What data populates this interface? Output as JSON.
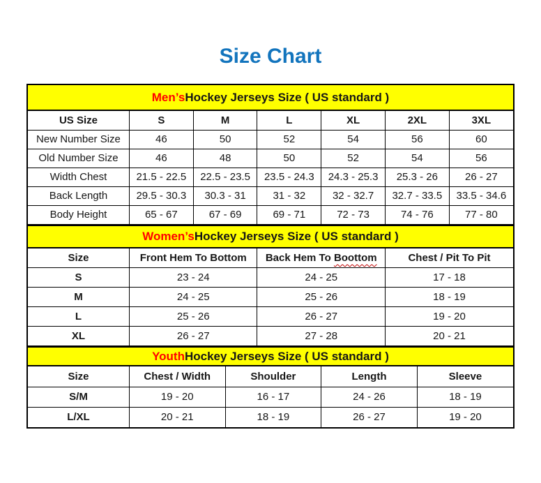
{
  "page": {
    "title": "Size Chart"
  },
  "colors": {
    "title": "#1274BD",
    "section_bg": "#FFFF00",
    "highlight": "#FF0000",
    "squiggle": "#C00000",
    "border": "#000000"
  },
  "sections": [
    {
      "id": "men",
      "heading": {
        "highlight": "Men’s",
        "rest": " Hockey Jerseys Size ( US standard )"
      },
      "columns": [
        "US Size",
        "S",
        "M",
        "L",
        "XL",
        "2XL",
        "3XL"
      ],
      "rows": [
        {
          "label": "New Number Size",
          "values": [
            "46",
            "50",
            "52",
            "54",
            "56",
            "60"
          ]
        },
        {
          "label": "Old Number Size",
          "values": [
            "46",
            "48",
            "50",
            "52",
            "54",
            "56"
          ]
        },
        {
          "label": "Width Chest",
          "values": [
            "21.5 - 22.5",
            "22.5 - 23.5",
            "23.5 - 24.3",
            "24.3 - 25.3",
            "25.3 - 26",
            "26 - 27"
          ]
        },
        {
          "label": "Back Length",
          "values": [
            "29.5 - 30.3",
            "30.3 - 31",
            "31 - 32",
            "32 - 32.7",
            "32.7 - 33.5",
            "33.5 - 34.6"
          ]
        },
        {
          "label": "Body Height",
          "values": [
            "65 - 67",
            "67 - 69",
            "69 - 71",
            "72 - 73",
            "74 - 76",
            "77 - 80"
          ]
        }
      ]
    },
    {
      "id": "women",
      "heading": {
        "highlight": "Women’s",
        "rest": " Hockey Jerseys Size ( US standard )"
      },
      "columns": [
        "Size",
        "Front Hem To Bottom",
        {
          "text": "Back Hem To ",
          "squiggle": "Boottom"
        },
        "Chest / Pit To Pit"
      ],
      "rows": [
        {
          "label": "S",
          "values": [
            "23 - 24",
            "24 - 25",
            "17 - 18"
          ]
        },
        {
          "label": "M",
          "values": [
            "24 - 25",
            "25 - 26",
            "18 - 19"
          ]
        },
        {
          "label": "L",
          "values": [
            "25 - 26",
            "26 - 27",
            "19 - 20"
          ]
        },
        {
          "label": "XL",
          "values": [
            "26 - 27",
            "27 - 28",
            "20 - 21"
          ]
        }
      ]
    },
    {
      "id": "youth",
      "heading": {
        "highlight": "Youth",
        "rest": " Hockey Jerseys Size ( US standard )"
      },
      "columns": [
        "Size",
        "Chest / Width",
        "Shoulder",
        "Length",
        "Sleeve"
      ],
      "rows": [
        {
          "label": "S/M",
          "values": [
            "19 - 20",
            "16 - 17",
            "24 - 26",
            "18 - 19"
          ]
        },
        {
          "label": "L/XL",
          "values": [
            "20 - 21",
            "18 - 19",
            "26 - 27",
            "19 - 20"
          ]
        }
      ]
    }
  ]
}
